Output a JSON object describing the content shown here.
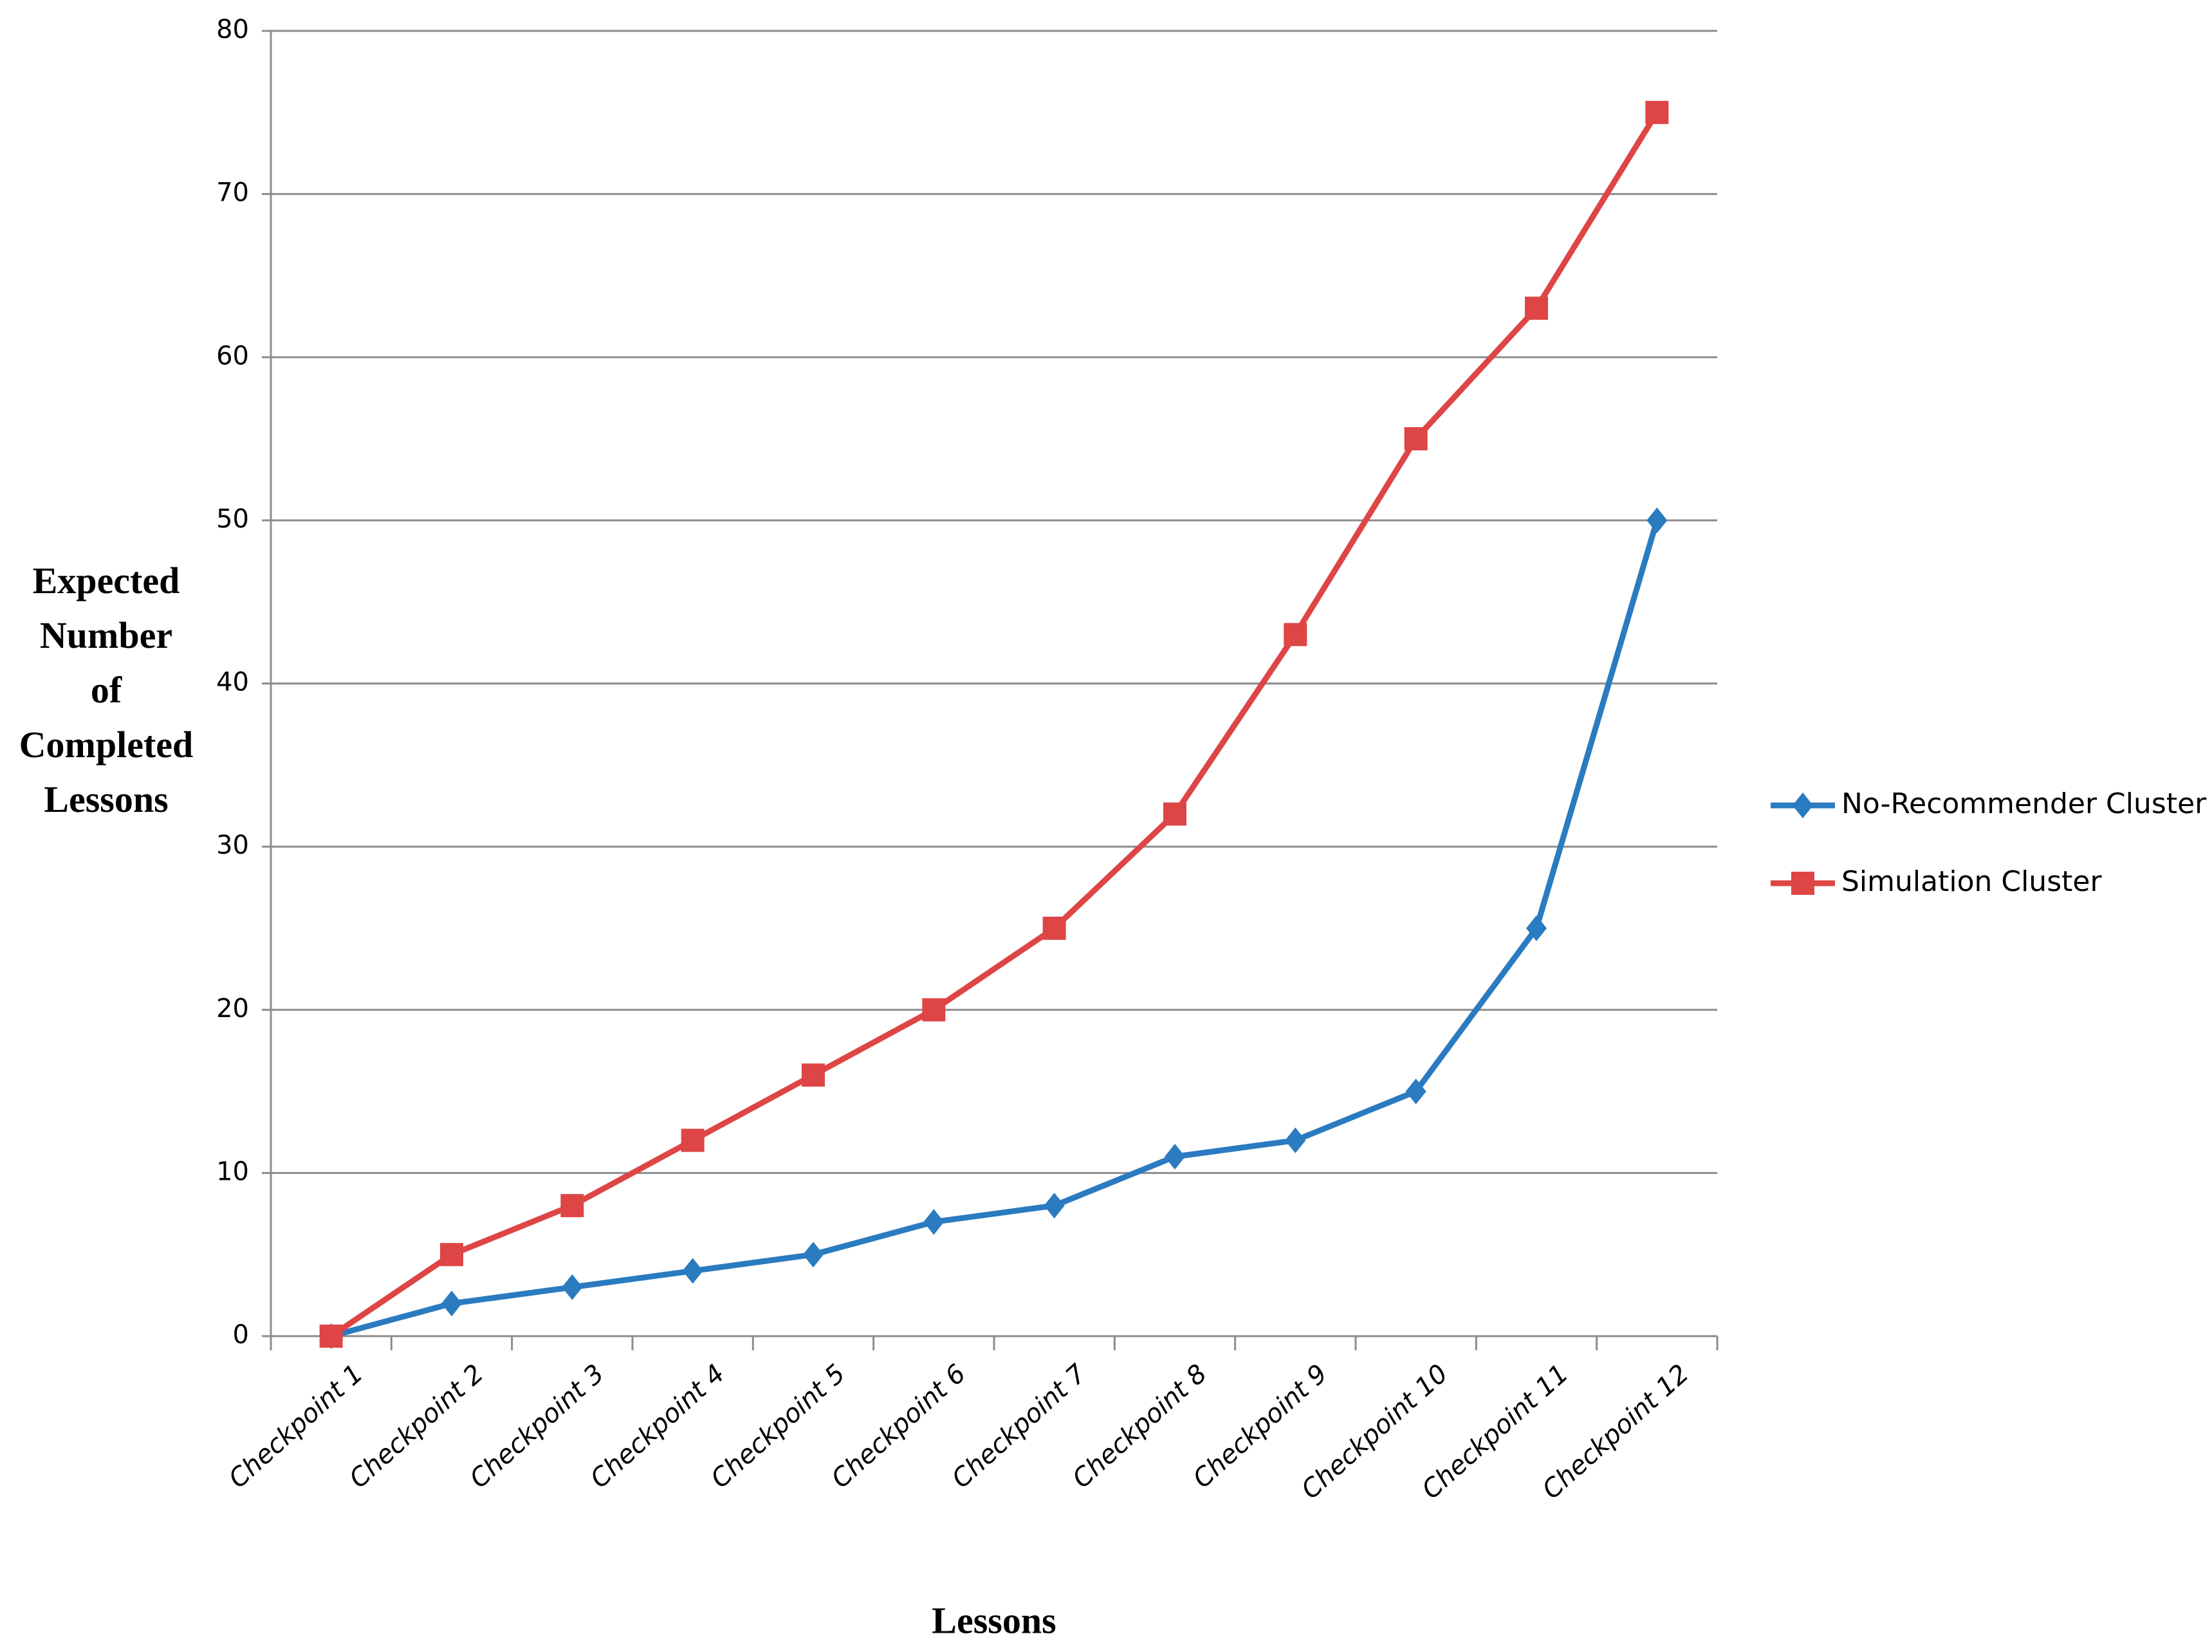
{
  "chart_data": {
    "type": "line",
    "x_label": "Lessons",
    "y_label": "Expected Number of Completed Lessons",
    "categories": [
      "Checkpoint 1",
      "Checkpoint 2",
      "Checkpoint 3",
      "Checkpoint 4",
      "Checkpoint 5",
      "Checkpoint 6",
      "Checkpoint 7",
      "Checkpoint 8",
      "Checkpoint 9",
      "Checkpoint 10",
      "Checkpoint 11",
      "Checkpoint 12"
    ],
    "series": [
      {
        "name": "No-Recommender Cluster",
        "color": "#2a7bc0",
        "marker": "diamond",
        "values": [
          0,
          2,
          3,
          4,
          5,
          7,
          8,
          11,
          12,
          15,
          25,
          50
        ]
      },
      {
        "name": "Simulation Cluster",
        "color": "#de4545",
        "marker": "square",
        "values": [
          0,
          5,
          8,
          12,
          16,
          20,
          25,
          32,
          43,
          55,
          63,
          75
        ]
      }
    ],
    "ylim": [
      0,
      80
    ],
    "yticks": [
      0,
      10,
      20,
      30,
      40,
      50,
      60,
      70,
      80
    ],
    "grid": true,
    "legend": "right"
  }
}
